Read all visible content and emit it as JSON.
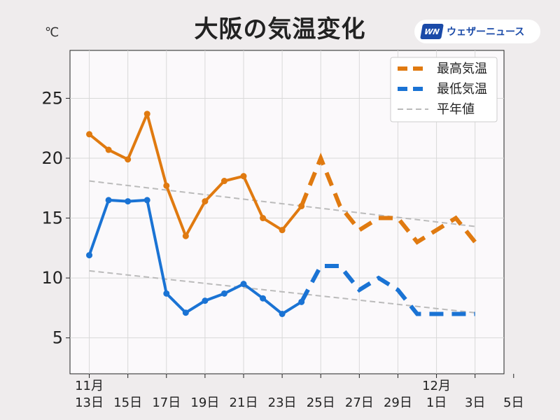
{
  "title": "大阪の気温変化",
  "unit": "℃",
  "logo": {
    "mark": "WN",
    "text": "ウェザーニュース"
  },
  "chart_data": {
    "type": "line",
    "title": "大阪の気温変化",
    "ylabel": "℃",
    "ylim": [
      2,
      29
    ],
    "yticks": [
      5,
      10,
      15,
      20,
      25
    ],
    "xlim": [
      12,
      34.5
    ],
    "xticks": [
      {
        "x": 13,
        "top": "11月",
        "bottom": "13日"
      },
      {
        "x": 15,
        "top": "",
        "bottom": "15日"
      },
      {
        "x": 17,
        "top": "",
        "bottom": "17日"
      },
      {
        "x": 19,
        "top": "",
        "bottom": "19日"
      },
      {
        "x": 21,
        "top": "",
        "bottom": "21日"
      },
      {
        "x": 23,
        "top": "",
        "bottom": "23日"
      },
      {
        "x": 25,
        "top": "",
        "bottom": "25日"
      },
      {
        "x": 27,
        "top": "",
        "bottom": "27日"
      },
      {
        "x": 29,
        "top": "",
        "bottom": "29日"
      },
      {
        "x": 31,
        "top": "12月",
        "bottom": "1日"
      },
      {
        "x": 33,
        "top": "",
        "bottom": "3日"
      },
      {
        "x": 35,
        "top": "",
        "bottom": "5日"
      }
    ],
    "grid": true,
    "legend_position": "top-right",
    "series": [
      {
        "name": "最高気温",
        "color": "#e07a10",
        "observed_x": [
          13,
          14,
          15,
          16,
          17,
          18,
          19,
          20,
          21,
          22,
          23,
          24
        ],
        "observed_y": [
          22.0,
          20.7,
          19.9,
          23.7,
          17.7,
          13.5,
          16.4,
          18.1,
          18.5,
          15.0,
          14.0,
          16.0
        ],
        "forecast_x": [
          24,
          25,
          26,
          27,
          28,
          29,
          30,
          31,
          32,
          33
        ],
        "forecast_y": [
          16.0,
          20.0,
          16.0,
          14.0,
          15.0,
          15.0,
          13.0,
          14.0,
          15.0,
          13.0
        ]
      },
      {
        "name": "最低気温",
        "color": "#1a73d4",
        "observed_x": [
          13,
          14,
          15,
          16,
          17,
          18,
          19,
          20,
          21,
          22,
          23,
          24
        ],
        "observed_y": [
          11.9,
          16.5,
          16.4,
          16.5,
          8.7,
          7.1,
          8.1,
          8.7,
          9.5,
          8.3,
          7.0,
          8.0
        ],
        "forecast_x": [
          24,
          25,
          26,
          27,
          28,
          29,
          30,
          31,
          32,
          33
        ],
        "forecast_y": [
          8.0,
          11.0,
          11.0,
          9.0,
          10.0,
          9.0,
          7.0,
          7.0,
          7.0,
          7.0
        ]
      },
      {
        "name": "平年値",
        "color": "#bbbbbb",
        "normal_high_x": [
          13,
          33
        ],
        "normal_high_y": [
          18.1,
          14.3
        ],
        "normal_low_x": [
          13,
          33
        ],
        "normal_low_y": [
          10.6,
          7.1
        ]
      }
    ]
  }
}
